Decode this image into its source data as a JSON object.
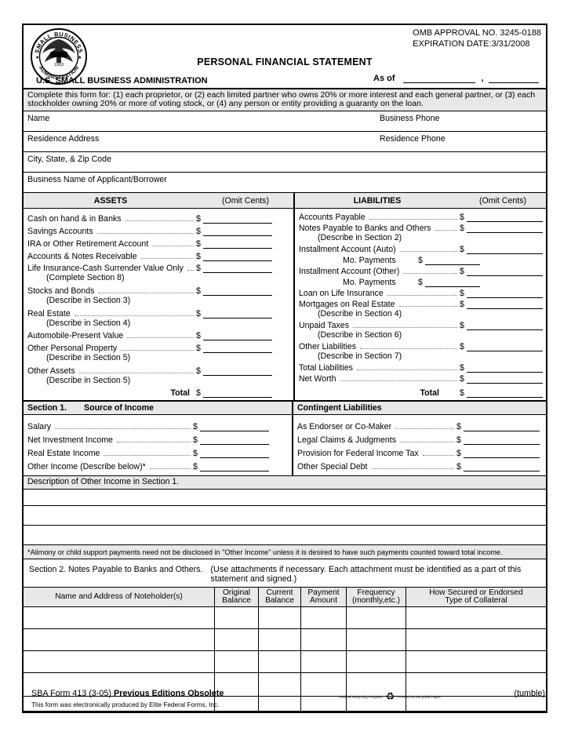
{
  "currency_symbol": "$",
  "header": {
    "omb_line1": "OMB APPROVAL NO. 3245-0188",
    "omb_line2": "EXPIRATION DATE:3/31/2008",
    "title": "PERSONAL FINANCIAL STATEMENT",
    "agency": "U.S. SMALL BUSINESS ADMINISTRATION",
    "as_of_label": "As of",
    "as_of_separator": ",",
    "seal": {
      "top_text": "SMALL BUSINESS",
      "bottom_text": "ADMINISTRATION",
      "year": "1953"
    }
  },
  "instructions": "Complete this form for: (1) each proprietor, or (2) each limited partner who owns 20% or more interest and each general partner, or (3) each stockholder owning 20% or more of voting stock, or (4) any person or entity providing a guaranty on the loan.",
  "identity_rows": [
    {
      "label": "Name",
      "label_right": "Business Phone"
    },
    {
      "label": "Residence Address",
      "label_right": "Residence Phone"
    },
    {
      "label": "City, State, & Zip Code"
    },
    {
      "label": "Business Name of Applicant/Borrower"
    }
  ],
  "balance_sheet": {
    "assets": {
      "title": "ASSETS",
      "omit_cents": "(Omit Cents)",
      "rows": [
        {
          "label": "Cash on hand & in Banks"
        },
        {
          "label": "Savings Accounts"
        },
        {
          "label": "IRA or Other Retirement Account"
        },
        {
          "label": "Accounts & Notes Receivable"
        },
        {
          "label": "Life Insurance-Cash Surrender Value Only",
          "note": "(Complete Section 8)"
        },
        {
          "label": "Stocks and Bonds",
          "note": "(Describe in Section 3)"
        },
        {
          "label": "Real Estate",
          "note": "(Describe in Section 4)"
        },
        {
          "label": "Automobile-Present Value"
        },
        {
          "label": "Other Personal Property",
          "note": "(Describe in Section 5)"
        },
        {
          "label": "Other Assets",
          "note": "(Describe in Section 5)"
        }
      ],
      "total_label": "Total"
    },
    "liabilities": {
      "title": "LIABILITIES",
      "omit_cents": "(Omit Cents)",
      "rows": [
        {
          "label": "Accounts Payable"
        },
        {
          "label": "Notes Payable to Banks and Others",
          "note": "(Describe in Section 2)"
        },
        {
          "label": "Installment Account (Auto)",
          "sub_label": "Mo. Payments"
        },
        {
          "label": "Installment Account (Other)",
          "sub_label": "Mo. Payments"
        },
        {
          "label": "Loan on Life Insurance"
        },
        {
          "label": "Mortgages on Real Estate",
          "note": "(Describe in Section 4)"
        },
        {
          "label": "Unpaid Taxes",
          "note": "(Describe in Section 6)"
        },
        {
          "label": "Other Liabilities",
          "note": "(Describe in Section 7)"
        },
        {
          "label": "Total Liabilities"
        },
        {
          "label": "Net Worth"
        }
      ],
      "total_label": "Total"
    }
  },
  "section1": {
    "label": "Section 1.",
    "title": "Source of Income",
    "income_rows": [
      {
        "label": "Salary"
      },
      {
        "label": "Net Investment Income"
      },
      {
        "label": "Real Estate Income"
      },
      {
        "label": "Other Income (Describe below)*"
      }
    ],
    "contingent_title": "Contingent Liabilities",
    "contingent_rows": [
      {
        "label": "As Endorser or Co-Maker"
      },
      {
        "label": "Legal Claims & Judgments"
      },
      {
        "label": "Provision for Federal Income Tax"
      },
      {
        "label": "Other Special Debt"
      }
    ],
    "description_bar": "Description of Other Income in Section 1.",
    "blank_line_count": 3,
    "footnote": "*Alimony or child support payments need not be disclosed in \"Other Income\" unless it is desired to have such payments counted toward total income."
  },
  "section2": {
    "title": "Section 2. Notes Payable to Banks and Others.",
    "note": "(Use attachments if necessary. Each attachment must be identified as a part of this statement and signed.)",
    "table": {
      "columns": [
        {
          "line1": "Name and Address of Noteholder(s)"
        },
        {
          "line1": "Original",
          "line2": "Balance"
        },
        {
          "line1": "Current",
          "line2": "Balance"
        },
        {
          "line1": "Payment",
          "line2": "Amount"
        },
        {
          "line1": "Frequency",
          "line2": "(monthly,etc.)"
        },
        {
          "line1": "How Secured or Endorsed",
          "line2": "Type of Collateral"
        }
      ],
      "empty_row_count": 5
    }
  },
  "footer": {
    "form_number": "SBA Form 413 (3-05)",
    "obsolete_note": "Previous Editions Obsolete",
    "produced_by": "This form was electronically produced by Elite Federal Forms, Inc.",
    "recycle_left": "Federal Recycling Program",
    "recycle_right": "Printed on Recycled Paper",
    "tumble": "(tumble)"
  }
}
